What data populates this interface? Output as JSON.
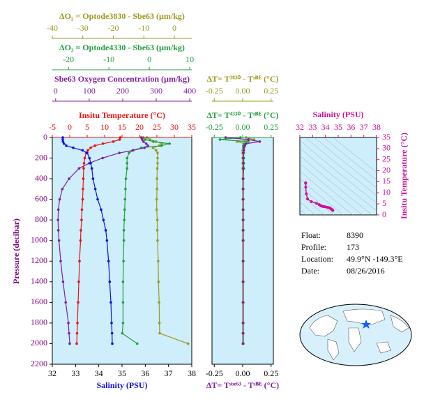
{
  "chart_data": [
    {
      "type": "profile",
      "ylabel": "Pressure (decibar)",
      "ycolor": "#800080",
      "ylim": [
        0,
        2200
      ],
      "yticks": [
        0,
        200,
        400,
        600,
        800,
        1000,
        1200,
        1400,
        1600,
        1800,
        2000,
        2200
      ],
      "background": "#cdeefa",
      "pressure": [
        0,
        20,
        40,
        60,
        80,
        100,
        125,
        150,
        200,
        250,
        300,
        400,
        500,
        600,
        700,
        800,
        900,
        1000,
        1200,
        1400,
        1600,
        1800,
        1900,
        2000
      ],
      "axes": [
        {
          "label": "ΔO₂ = Optode3830 - Sbe63    (µm/kg)",
          "color": "#9a9a1e",
          "side": "top",
          "xlim": [
            -40,
            5.7
          ],
          "xticks": [
            -40,
            -30,
            -20,
            -10,
            0
          ],
          "values": [
            -9,
            -8,
            -6,
            -4,
            -5,
            -7,
            -6,
            -5.5,
            -5.5,
            -5.5,
            -5.6,
            -5.7,
            -5.7,
            -5.8,
            -5.8,
            -5.6,
            -5.6,
            -5.5,
            -5.3,
            -5.2,
            -5.0,
            -4.9,
            -4.8,
            4.5
          ]
        },
        {
          "label": "ΔO₂ = Optode4330 - Sbe63    (µm/kg)",
          "color": "#20a040",
          "side": "top",
          "xlim": [
            -24,
            10.5
          ],
          "xticks": [
            -20,
            -10,
            0,
            10
          ],
          "values": [
            -1.5,
            -1,
            1,
            5,
            3,
            -2,
            -4,
            -5,
            -5.5,
            -5.5,
            -5.5,
            -5.8,
            -5.9,
            -6,
            -6.1,
            -6.2,
            -6.3,
            -6.3,
            -6.4,
            -6.5,
            -6.5,
            -6.5,
            -6.7,
            -3
          ]
        },
        {
          "label": "Sbe63 Oxygen Concentration (µm/kg)",
          "color": "#8020a0",
          "side": "top",
          "xlim": [
            -10,
            406
          ],
          "xticks": [
            0,
            100,
            200,
            300,
            400
          ],
          "values": [
            255,
            258,
            262,
            270,
            275,
            265,
            230,
            190,
            140,
            100,
            70,
            40,
            20,
            12,
            8,
            7,
            8,
            10,
            15,
            22,
            30,
            38,
            40,
            42
          ]
        },
        {
          "label": "Insitu Temperature (°C)",
          "color": "#ee1010",
          "side": "top",
          "xlim": [
            -5,
            35
          ],
          "xticks": [
            -5,
            0,
            5,
            10,
            15,
            20,
            25,
            30,
            35
          ],
          "values": [
            14.5,
            14.3,
            12.5,
            9.5,
            7.2,
            6,
            5.2,
            4.7,
            4.3,
            4.1,
            4.0,
            3.9,
            3.8,
            3.7,
            3.5,
            3.4,
            3.2,
            3.1,
            2.8,
            2.6,
            2.4,
            2.2,
            2.1,
            2.0
          ]
        },
        {
          "label": "Salinity (PSU)",
          "color": "#1010dd",
          "side": "bottom",
          "xlim": [
            32,
            38
          ],
          "xticks": [
            32,
            33,
            34,
            35,
            36,
            37,
            38
          ],
          "values": [
            32.45,
            32.45,
            32.46,
            32.5,
            32.6,
            32.9,
            33.3,
            33.5,
            33.6,
            33.65,
            33.7,
            33.75,
            33.85,
            33.95,
            34.1,
            34.2,
            34.3,
            34.35,
            34.42,
            34.47,
            34.52,
            34.55,
            34.57,
            34.58
          ]
        }
      ]
    },
    {
      "type": "delta",
      "background": "#cdeefa",
      "axes": [
        {
          "label": "ΔT= T³⁸³⁰ - Tˢᴮᴱ (°C)",
          "color": "#9a9a1e",
          "side": "top",
          "xlim": [
            -0.27,
            0.27
          ],
          "xticks": [
            -0.25,
            {
              "value": 0,
              "label": "0.00"
            },
            0.25
          ],
          "values": [
            0.03,
            0.1,
            -0.05,
            0.02,
            0.01,
            0.005,
            0,
            0,
            0,
            0,
            0,
            0,
            0,
            0,
            0,
            0,
            0,
            0,
            0,
            0,
            0,
            0,
            0,
            0
          ]
        },
        {
          "label": "ΔT= T⁴³³⁰ - Tˢᴮᴱ (°C)",
          "color": "#20a040",
          "side": "top",
          "xlim": [
            -0.27,
            0.27
          ],
          "xticks": [
            -0.25,
            {
              "value": 0,
              "label": "0.00"
            },
            0.25
          ],
          "values": [
            -0.02,
            -0.2,
            0.05,
            0.01,
            0.005,
            0.01,
            0.01,
            0.01,
            0.01,
            0.01,
            0.01,
            0.005,
            0.005,
            0.005,
            0.005,
            0.005,
            0.005,
            0.005,
            0.005,
            0.005,
            0.005,
            0.005,
            0.005,
            0.005
          ]
        },
        {
          "label": "ΔT= Tˢᵇᵉ⁶³ - Tˢᴮᴱ (°C)",
          "color": "#8020a0",
          "side": "bottom",
          "xlim": [
            -0.27,
            0.27
          ],
          "xticks": [
            -0.25,
            {
              "value": 0,
              "label": "0.00"
            },
            0.25
          ],
          "values": [
            -0.15,
            0.05,
            0.15,
            0.03,
            0.02,
            0.01,
            0.01,
            0.005,
            0.005,
            0.005,
            0.005,
            0.005,
            0.005,
            0.005,
            0.005,
            0.005,
            0.005,
            0.005,
            0.005,
            0.005,
            0.005,
            0.005,
            0.005,
            0.005
          ]
        }
      ]
    },
    {
      "type": "ts",
      "xlabel": "Salinity (PSU)",
      "ylabel": "Insitu Temperature (°C)",
      "color": "#d0109a",
      "background": "#cdeefa",
      "xlim": [
        32,
        38
      ],
      "xticks": [
        32,
        33,
        34,
        35,
        36,
        37,
        38
      ],
      "ylim": [
        0,
        35
      ],
      "yticks": [
        0,
        5,
        10,
        15,
        20,
        25,
        30,
        35
      ]
    }
  ],
  "info": [
    {
      "label": "Float:",
      "value": "8390"
    },
    {
      "label": "Profile:",
      "value": "173"
    },
    {
      "label": "Location:",
      "value": "49.9°N  -149.3°E"
    },
    {
      "label": "Date:",
      "value": "08/26/2016"
    }
  ]
}
